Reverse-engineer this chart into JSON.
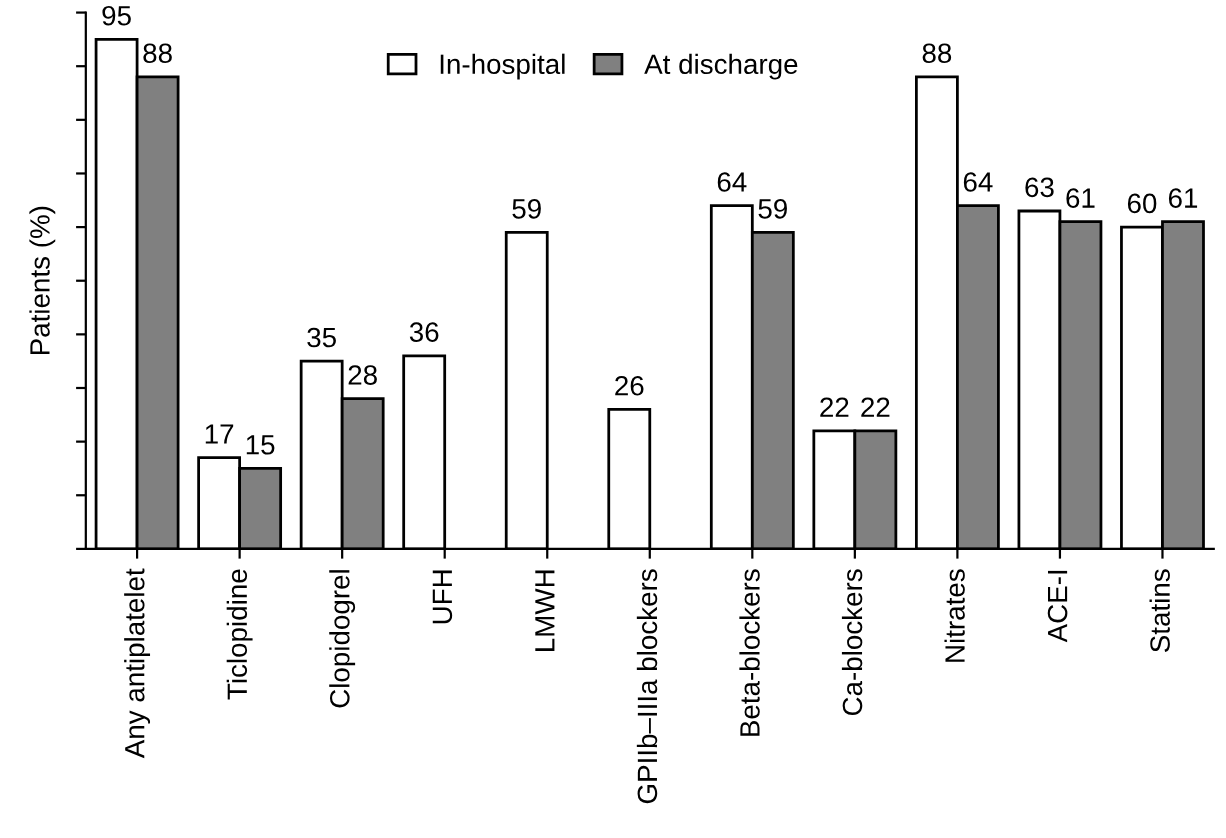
{
  "chart_data": {
    "type": "bar",
    "ylabel": "Patients (%)",
    "categories": [
      "Any antiplatelet",
      "Ticlopidine",
      "Clopidogrel",
      "UFH",
      "LMWH",
      "GPIIb–IIIa blockers",
      "Beta-blockers",
      "Ca-blockers",
      "Nitrates",
      "ACE-I",
      "Statins"
    ],
    "series": [
      {
        "name": "In-hospital",
        "color": "#ffffff",
        "values": [
          95,
          17,
          35,
          36,
          59,
          26,
          64,
          22,
          88,
          63,
          60
        ]
      },
      {
        "name": "At discharge",
        "color": "#808080",
        "values": [
          88,
          15,
          28,
          null,
          null,
          null,
          59,
          22,
          64,
          61,
          61
        ]
      }
    ],
    "ylim": [
      0,
      100
    ],
    "yticks": [
      {
        "value": 0,
        "label": null
      },
      {
        "value": 10,
        "label": null
      },
      {
        "value": 20,
        "label": null
      },
      {
        "value": 30,
        "label": null
      },
      {
        "value": 40,
        "label": null
      },
      {
        "value": 50,
        "label": null
      },
      {
        "value": 60,
        "label": null
      },
      {
        "value": 70,
        "label": null
      },
      {
        "value": 80,
        "label": null
      },
      {
        "value": 90,
        "label": null
      },
      {
        "value": 100,
        "label": null
      }
    ],
    "data_labels": true,
    "legend": "top",
    "grid": false
  }
}
